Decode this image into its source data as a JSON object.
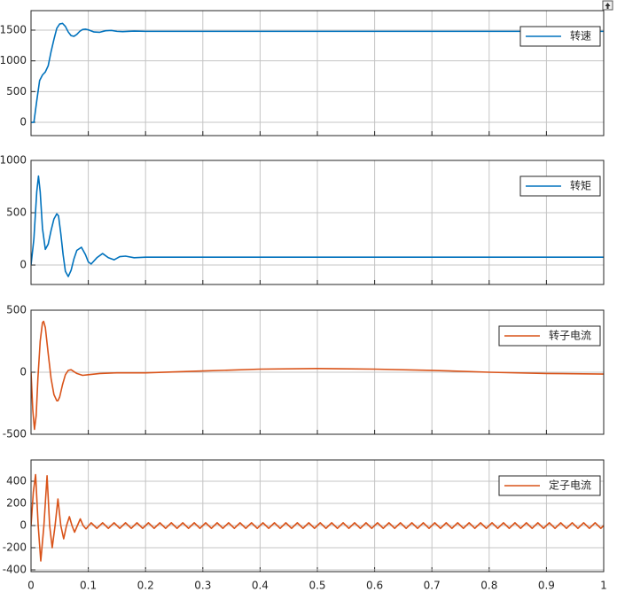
{
  "chart_data": [
    {
      "type": "line",
      "grid": true,
      "legend": "upper right",
      "xlim": [
        0,
        1
      ],
      "ylim": [
        -216,
        1817
      ],
      "xticks": [
        0,
        0.1,
        0.2,
        0.3,
        0.4,
        0.5,
        0.6,
        0.7,
        0.8,
        0.9,
        1
      ],
      "yticks": [
        0,
        500,
        1000,
        1500
      ],
      "x": [
        0,
        0.005,
        0.01,
        0.015,
        0.02,
        0.025,
        0.03,
        0.035,
        0.04,
        0.045,
        0.05,
        0.055,
        0.06,
        0.065,
        0.07,
        0.075,
        0.08,
        0.085,
        0.09,
        0.095,
        0.1,
        0.11,
        0.12,
        0.13,
        0.14,
        0.15,
        0.16,
        0.18,
        0.2,
        0.25,
        0.3,
        0.4,
        0.5,
        0.6,
        0.7,
        0.8,
        0.9,
        1
      ],
      "series": [
        {
          "name": "转速",
          "color": "#0072bd",
          "values": [
            0,
            0,
            350,
            680,
            770,
            820,
            920,
            1150,
            1350,
            1530,
            1600,
            1610,
            1560,
            1470,
            1410,
            1400,
            1430,
            1480,
            1510,
            1515,
            1505,
            1470,
            1465,
            1490,
            1495,
            1480,
            1475,
            1485,
            1480,
            1480,
            1480,
            1480,
            1480,
            1480,
            1480,
            1480,
            1480,
            1480
          ]
        }
      ]
    },
    {
      "type": "line",
      "grid": true,
      "legend": "upper right",
      "xlim": [
        0,
        1
      ],
      "ylim": [
        -186,
        1000
      ],
      "xticks": [
        0,
        0.1,
        0.2,
        0.3,
        0.4,
        0.5,
        0.6,
        0.7,
        0.8,
        0.9,
        1
      ],
      "yticks": [
        0,
        500,
        1000
      ],
      "x": [
        0,
        0.005,
        0.01,
        0.013,
        0.016,
        0.02,
        0.025,
        0.03,
        0.035,
        0.04,
        0.045,
        0.048,
        0.052,
        0.056,
        0.06,
        0.065,
        0.07,
        0.075,
        0.08,
        0.088,
        0.095,
        0.1,
        0.105,
        0.115,
        0.125,
        0.135,
        0.145,
        0.155,
        0.165,
        0.18,
        0.2,
        0.3,
        1
      ],
      "series": [
        {
          "name": "转矩",
          "color": "#0072bd",
          "values": [
            0,
            250,
            700,
            850,
            700,
            350,
            150,
            200,
            330,
            440,
            490,
            470,
            300,
            100,
            -60,
            -110,
            -50,
            60,
            140,
            170,
            100,
            30,
            10,
            70,
            110,
            70,
            50,
            80,
            85,
            70,
            75,
            75,
            75
          ]
        }
      ]
    },
    {
      "type": "line",
      "grid": true,
      "legend": "upper right",
      "xlim": [
        0,
        1
      ],
      "ylim": [
        -500,
        500
      ],
      "xticks": [
        0,
        0.1,
        0.2,
        0.3,
        0.4,
        0.5,
        0.6,
        0.7,
        0.8,
        0.9,
        1
      ],
      "yticks": [
        -500,
        0,
        500
      ],
      "x": [
        0,
        0.003,
        0.006,
        0.009,
        0.012,
        0.016,
        0.02,
        0.022,
        0.025,
        0.03,
        0.035,
        0.04,
        0.045,
        0.047,
        0.05,
        0.055,
        0.06,
        0.065,
        0.07,
        0.08,
        0.09,
        0.1,
        0.12,
        0.15,
        0.2,
        0.3,
        0.4,
        0.5,
        0.6,
        0.7,
        0.8,
        0.9,
        1
      ],
      "series": [
        {
          "name": "转子电流",
          "color": "#d95319",
          "values": [
            0,
            -300,
            -460,
            -350,
            -50,
            250,
            400,
            410,
            360,
            150,
            -50,
            -180,
            -230,
            -230,
            -200,
            -100,
            -20,
            15,
            20,
            -10,
            -25,
            -20,
            -10,
            -5,
            -5,
            10,
            25,
            30,
            25,
            15,
            0,
            -10,
            -15
          ]
        }
      ]
    },
    {
      "type": "line",
      "grid": true,
      "legend": "upper right",
      "xlim": [
        0,
        1
      ],
      "ylim": [
        -416,
        592
      ],
      "xticks": [
        0,
        0.1,
        0.2,
        0.3,
        0.4,
        0.5,
        0.6,
        0.7,
        0.8,
        0.9,
        1
      ],
      "yticks": [
        -400,
        -200,
        0,
        200,
        400
      ],
      "x": [
        0,
        0.004,
        0.008,
        0.0125,
        0.017,
        0.0225,
        0.028,
        0.0325,
        0.037,
        0.042,
        0.047,
        0.052,
        0.057,
        0.062,
        0.067,
        0.0715,
        0.076,
        0.081,
        0.086,
        0.091,
        0.096,
        0.105,
        0.115,
        0.125,
        0.135,
        0.145,
        0.155,
        0.165,
        0.175,
        0.185,
        0.195,
        0.205,
        0.215,
        0.225,
        0.235,
        0.245,
        0.255,
        0.265,
        0.275,
        0.285,
        0.295,
        0.305,
        0.315,
        0.325,
        0.335,
        0.345,
        0.355,
        0.365,
        0.375,
        0.385,
        0.395,
        0.405,
        0.415,
        0.425,
        0.435,
        0.445,
        0.455,
        0.465,
        0.475,
        0.485,
        0.495,
        0.505,
        0.515,
        0.525,
        0.535,
        0.545,
        0.555,
        0.565,
        0.575,
        0.585,
        0.595,
        0.605,
        0.615,
        0.625,
        0.635,
        0.645,
        0.655,
        0.665,
        0.675,
        0.685,
        0.695,
        0.705,
        0.715,
        0.725,
        0.735,
        0.745,
        0.755,
        0.765,
        0.775,
        0.785,
        0.795,
        0.805,
        0.815,
        0.825,
        0.835,
        0.845,
        0.855,
        0.865,
        0.875,
        0.885,
        0.895,
        0.905,
        0.915,
        0.925,
        0.935,
        0.945,
        0.955,
        0.965,
        0.975,
        0.985,
        0.995,
        1
      ],
      "series": [
        {
          "name": "定子电流",
          "color": "#d95319",
          "values": [
            0,
            300,
            460,
            0,
            -320,
            0,
            450,
            0,
            -200,
            0,
            240,
            0,
            -120,
            0,
            80,
            0,
            -60,
            0,
            60,
            0,
            -30,
            25,
            -25,
            25,
            -25,
            25,
            -25,
            25,
            -25,
            25,
            -25,
            25,
            -25,
            25,
            -25,
            25,
            -25,
            25,
            -25,
            25,
            -25,
            25,
            -25,
            25,
            -25,
            25,
            -25,
            25,
            -25,
            25,
            -25,
            25,
            -25,
            25,
            -25,
            25,
            -25,
            25,
            -25,
            25,
            -25,
            25,
            -25,
            25,
            -25,
            25,
            -25,
            25,
            -25,
            25,
            -25,
            25,
            -25,
            25,
            -25,
            25,
            -25,
            25,
            -25,
            25,
            -25,
            25,
            -25,
            25,
            -25,
            25,
            -25,
            25,
            -25,
            25,
            -25,
            25,
            -25,
            25,
            -25,
            25,
            -25,
            25,
            -25,
            25,
            -25,
            25,
            -25,
            25,
            -25,
            25,
            -25,
            25,
            -25,
            25,
            -25,
            0
          ]
        }
      ]
    }
  ]
}
